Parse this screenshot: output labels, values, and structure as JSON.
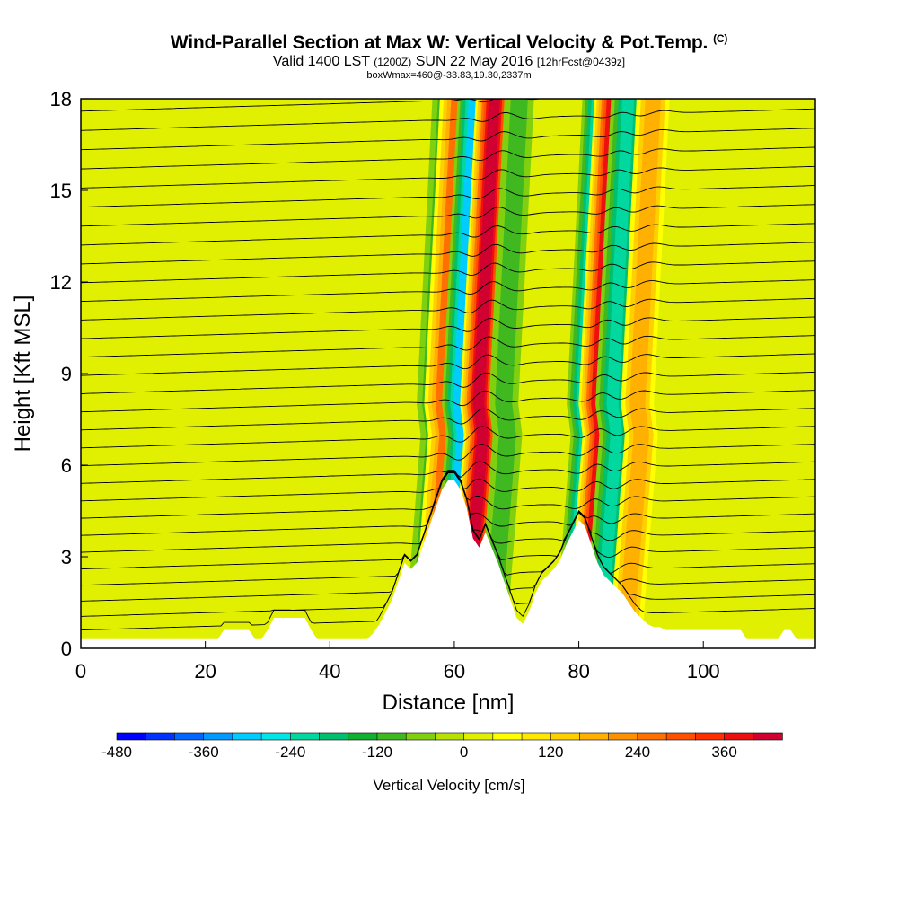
{
  "chart_data": {
    "type": "heatmap",
    "title": "Wind-Parallel Section at Max W: Vertical Velocity & Pot.Temp.",
    "title_mark": "(C)",
    "subtitle_main": "Valid 1400 LST",
    "subtitle_utc": "(1200Z)",
    "subtitle_date": "SUN 22 May 2016",
    "subtitle_fcst": "[12hrFcst@0439z]",
    "subtitle2": "boxWmax=460@-33.83,19.30,2337m",
    "xlabel": "Distance [nm]",
    "ylabel": "Height [Kft MSL]",
    "xlim": [
      0,
      118
    ],
    "ylim": [
      0,
      18
    ],
    "x_ticks": [
      0,
      20,
      40,
      60,
      80,
      100
    ],
    "y_ticks": [
      0,
      3,
      6,
      9,
      12,
      15,
      18
    ],
    "colorbar": {
      "label": "Vertical Velocity [cm/s]",
      "ticks": [
        -480,
        -360,
        -240,
        -120,
        0,
        120,
        240,
        360
      ],
      "range": [
        -480,
        440
      ],
      "colors": [
        "#0000ff",
        "#0033ff",
        "#0066ff",
        "#0099ff",
        "#00ccff",
        "#00e5e5",
        "#00d8a0",
        "#00c070",
        "#10b030",
        "#40b820",
        "#80d010",
        "#b8e000",
        "#e0f000",
        "#ffff00",
        "#ffe800",
        "#ffd000",
        "#ffb000",
        "#ff9000",
        "#ff7000",
        "#ff5000",
        "#ff3000",
        "#ee1010",
        "#d00030"
      ]
    },
    "velocity_bands_cm_s": [
      {
        "x": 57,
        "peak": -150
      },
      {
        "x": 58.5,
        "peak": 240
      },
      {
        "x": 61.5,
        "peak": -340
      },
      {
        "x": 64.5,
        "peak": 440
      },
      {
        "x": 68.5,
        "peak": -130
      },
      {
        "x": 81.5,
        "peak": -300
      },
      {
        "x": 83.5,
        "peak": 380
      },
      {
        "x": 86,
        "peak": -240
      },
      {
        "x": 90,
        "peak": 200
      }
    ],
    "terrain_kft": {
      "x": [
        0,
        22,
        23,
        27,
        28,
        29,
        30,
        31,
        32,
        36,
        37,
        38,
        39,
        46,
        47,
        48,
        49,
        50,
        51,
        52,
        53,
        54,
        55,
        56,
        57,
        58,
        59,
        60,
        61,
        62,
        63,
        64,
        65,
        66,
        67,
        68,
        69,
        70,
        71,
        72,
        73,
        74,
        75,
        76,
        77,
        78,
        79,
        80,
        81,
        82,
        83,
        84,
        85,
        86,
        87,
        88,
        89,
        90,
        91,
        92,
        93,
        94,
        95,
        96,
        97,
        98,
        99,
        100,
        101,
        102,
        103,
        104,
        105,
        106,
        107,
        108,
        109,
        110,
        111,
        112,
        113,
        114,
        115,
        116,
        117,
        118
      ],
      "y": [
        0.3,
        0.3,
        0.6,
        0.6,
        0.3,
        0.3,
        0.6,
        1.0,
        1.0,
        1.0,
        0.6,
        0.3,
        0.3,
        0.3,
        0.5,
        0.8,
        1.2,
        1.6,
        2.2,
        2.8,
        2.6,
        2.8,
        3.4,
        4.0,
        4.6,
        5.2,
        5.5,
        5.5,
        5.2,
        4.6,
        3.6,
        3.3,
        3.8,
        3.3,
        2.8,
        2.2,
        1.6,
        1.0,
        0.8,
        1.2,
        1.8,
        2.2,
        2.4,
        2.6,
        2.9,
        3.4,
        3.8,
        4.2,
        4.0,
        3.4,
        2.8,
        2.4,
        2.2,
        2.0,
        1.8,
        1.5,
        1.2,
        1.0,
        0.8,
        0.7,
        0.7,
        0.6,
        0.6,
        0.6,
        0.6,
        0.6,
        0.6,
        0.6,
        0.6,
        0.6,
        0.6,
        0.6,
        0.6,
        0.6,
        0.3,
        0.3,
        0.3,
        0.3,
        0.3,
        0.3,
        0.6,
        0.6,
        0.3,
        0.3,
        0.3,
        0.3
      ]
    },
    "isentropes": {
      "count": 33,
      "z_min_kft": 0.6,
      "z_max_kft": 19.5
    }
  }
}
